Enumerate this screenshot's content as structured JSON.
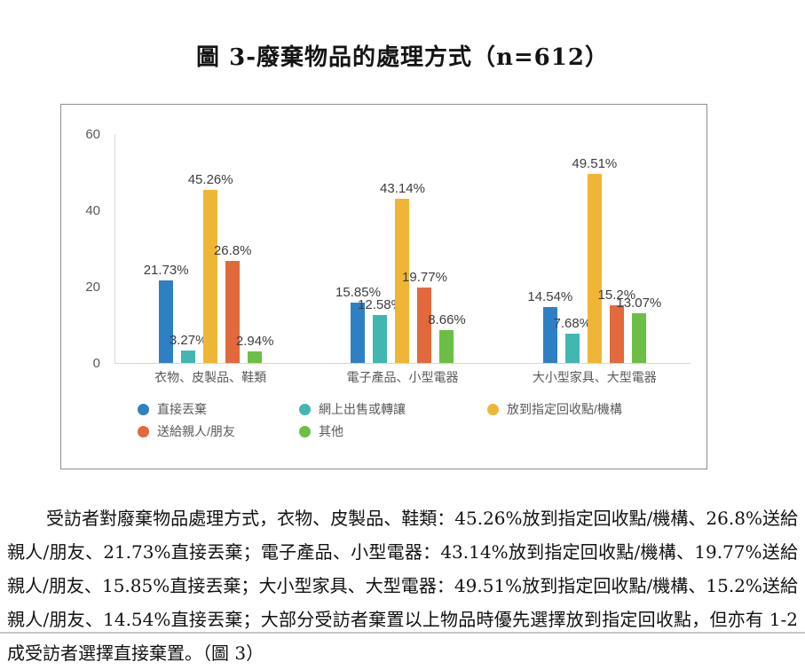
{
  "title": "圖 3-廢棄物品的處理方式（n=612）",
  "chart_data": {
    "type": "bar",
    "title": "圖 3-廢棄物品的處理方式（n=612）",
    "categories": [
      "衣物、皮製品、鞋類",
      "電子產品、小型電器",
      "大小型家具、大型電器"
    ],
    "series": [
      {
        "name": "直接丟棄",
        "color": "#2E80C4",
        "values": [
          21.73,
          15.85,
          14.54
        ],
        "labels": [
          "21.73%",
          "15.85%",
          "14.54%"
        ]
      },
      {
        "name": "網上出售或轉讓",
        "color": "#42B7B1",
        "values": [
          3.27,
          12.58,
          7.68
        ],
        "labels": [
          "3.27%",
          "12.58%",
          "7.68%"
        ]
      },
      {
        "name": "放到指定回收點/機構",
        "color": "#EFB636",
        "values": [
          45.26,
          43.14,
          49.51
        ],
        "labels": [
          "45.26%",
          "43.14%",
          "49.51%"
        ]
      },
      {
        "name": "送給親人/朋友",
        "color": "#E2693B",
        "values": [
          26.8,
          19.77,
          15.2
        ],
        "labels": [
          "26.8%",
          "19.77%",
          "15.2%"
        ]
      },
      {
        "name": "其他",
        "color": "#6CBE46",
        "values": [
          2.94,
          8.66,
          13.07
        ],
        "labels": [
          "2.94%",
          "8.66%",
          "13.07%"
        ]
      }
    ],
    "ylim": [
      0,
      60
    ],
    "yticks": [
      0,
      20,
      40,
      60
    ],
    "ytick_labels": [
      "0",
      "20",
      "40",
      "60"
    ],
    "grid": false,
    "legend_position": "bottom"
  },
  "paragraph": {
    "text": "受訪者對廢棄物品處理方式，衣物、皮製品、鞋類：45.26%放到指定回收點/機構、26.8%送給親人/朋友、21.73%直接丟棄；電子產品、小型電器：43.14%放到指定回收點/機構、19.77%送給親人/朋友、15.85%直接丟棄；大小型家具、大型電器：49.51%放到指定回收點/機構、15.2%送給親人/朋友、14.54%直接丟棄；大部分受訪者棄置以上物品時優先選擇放到指定回收點，但亦有 1-2 成受訪者選擇直接棄置。（圖 3）"
  }
}
